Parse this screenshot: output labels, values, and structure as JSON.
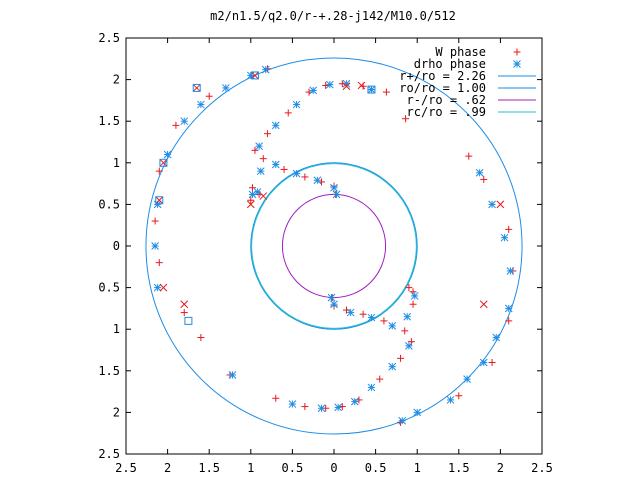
{
  "chart_data": {
    "type": "scatter",
    "title": "m2/n1.5/q2.0/r-+.28-j142/M10.0/512",
    "xlim": [
      -2.5,
      2.5
    ],
    "ylim": [
      -2.5,
      2.5
    ],
    "grid": false,
    "legend_position": "top-right",
    "x_ticks": [
      -2.5,
      -2,
      -1.5,
      -1,
      -0.5,
      0,
      0.5,
      1,
      1.5,
      2,
      2.5
    ],
    "x_tick_labels": [
      "2.5",
      "2",
      "1.5",
      "1",
      "0.5",
      "0",
      "0.5",
      "1",
      "1.5",
      "2",
      "2.5"
    ],
    "y_ticks": [
      2.5,
      2,
      1.5,
      1,
      0.5,
      0,
      -0.5,
      -1,
      -1.5,
      -2,
      -2.5
    ],
    "y_tick_labels": [
      "2.5",
      "2",
      "1.5",
      "1",
      "0.5",
      "0",
      "0.5",
      "1",
      "1.5",
      "2",
      "2.5"
    ],
    "legend": [
      {
        "label": "W phase",
        "marker": "+",
        "color": "#e8191c"
      },
      {
        "label": "drho phase",
        "marker": "*",
        "color": "#1e8ce6"
      },
      {
        "label": "r+/ro = 2.26",
        "line": true,
        "color": "#1e8ce6"
      },
      {
        "label": "ro/ro = 1.00",
        "line": true,
        "color": "#1e8ce6"
      },
      {
        "label": "r-/ro =  .62",
        "line": true,
        "color": "#a020c0"
      },
      {
        "label": "rc/ro =  .99",
        "line": true,
        "color": "#20c0d0"
      }
    ],
    "circles": [
      {
        "r": 2.26,
        "color": "#1e8ce6"
      },
      {
        "r": 1.0,
        "color": "#1e8ce6"
      },
      {
        "r": 0.62,
        "color": "#a020c0"
      },
      {
        "r": 0.99,
        "color": "#20c0d0"
      }
    ],
    "series": [
      {
        "name": "W phase",
        "marker": "+",
        "color": "#e8191c",
        "points": [
          [
            0.02,
            0.62
          ],
          [
            0.0,
            0.72
          ],
          [
            -0.15,
            0.77
          ],
          [
            -0.35,
            0.83
          ],
          [
            -0.6,
            0.92
          ],
          [
            -0.85,
            1.05
          ],
          [
            -0.98,
            0.7
          ],
          [
            -1.0,
            0.55
          ],
          [
            -0.9,
            0.62
          ],
          [
            -0.95,
            1.15
          ],
          [
            -0.8,
            1.35
          ],
          [
            -0.55,
            1.6
          ],
          [
            -0.3,
            1.85
          ],
          [
            -0.1,
            1.93
          ],
          [
            0.1,
            1.95
          ],
          [
            0.35,
            1.92
          ],
          [
            0.63,
            1.85
          ],
          [
            -0.02,
            -0.62
          ],
          [
            0.0,
            -0.72
          ],
          [
            0.15,
            -0.77
          ],
          [
            0.35,
            -0.82
          ],
          [
            0.6,
            -0.9
          ],
          [
            0.85,
            -1.02
          ],
          [
            0.95,
            -0.7
          ],
          [
            0.95,
            -0.55
          ],
          [
            0.9,
            -0.5
          ],
          [
            0.93,
            -1.15
          ],
          [
            0.8,
            -1.35
          ],
          [
            0.55,
            -1.6
          ],
          [
            0.3,
            -1.85
          ],
          [
            0.1,
            -1.93
          ],
          [
            -0.1,
            -1.95
          ],
          [
            -0.35,
            -1.93
          ],
          [
            -0.7,
            -1.83
          ],
          [
            -1.25,
            -1.55
          ],
          [
            -1.6,
            -1.1
          ],
          [
            -1.8,
            -0.8
          ],
          [
            -2.1,
            -0.2
          ],
          [
            -2.15,
            0.3
          ],
          [
            -2.1,
            0.9
          ],
          [
            -1.9,
            1.45
          ],
          [
            -1.5,
            1.8
          ],
          [
            -0.8,
            2.13
          ],
          [
            1.62,
            1.08
          ],
          [
            1.8,
            0.8
          ],
          [
            2.1,
            0.2
          ],
          [
            2.15,
            -0.3
          ],
          [
            2.1,
            -0.9
          ],
          [
            1.9,
            -1.4
          ],
          [
            1.5,
            -1.8
          ],
          [
            0.8,
            -2.12
          ],
          [
            0.45,
            1.88
          ],
          [
            0.86,
            1.53
          ]
        ]
      },
      {
        "name": "drho phase",
        "marker": "*",
        "color": "#1e8ce6",
        "points": [
          [
            0.03,
            0.62
          ],
          [
            0.0,
            0.7
          ],
          [
            -0.2,
            0.79
          ],
          [
            -0.45,
            0.87
          ],
          [
            -0.7,
            0.98
          ],
          [
            -0.88,
            0.9
          ],
          [
            -0.98,
            0.62
          ],
          [
            -0.92,
            0.65
          ],
          [
            -0.9,
            1.2
          ],
          [
            -0.7,
            1.45
          ],
          [
            -0.45,
            1.7
          ],
          [
            -0.25,
            1.87
          ],
          [
            -0.05,
            1.94
          ],
          [
            0.15,
            1.95
          ],
          [
            0.45,
            1.88
          ],
          [
            -0.03,
            -0.62
          ],
          [
            0.0,
            -0.7
          ],
          [
            0.2,
            -0.8
          ],
          [
            0.45,
            -0.86
          ],
          [
            0.7,
            -0.96
          ],
          [
            0.88,
            -0.85
          ],
          [
            0.97,
            -0.6
          ],
          [
            0.9,
            -1.2
          ],
          [
            0.7,
            -1.45
          ],
          [
            0.45,
            -1.7
          ],
          [
            0.25,
            -1.87
          ],
          [
            0.05,
            -1.94
          ],
          [
            -0.15,
            -1.95
          ],
          [
            -0.5,
            -1.9
          ],
          [
            -1.22,
            -1.55
          ],
          [
            -2.12,
            -0.5
          ],
          [
            -2.15,
            0.0
          ],
          [
            -2.12,
            0.5
          ],
          [
            -2.0,
            1.1
          ],
          [
            -1.8,
            1.5
          ],
          [
            -1.6,
            1.7
          ],
          [
            -1.3,
            1.9
          ],
          [
            -1.0,
            2.05
          ],
          [
            -0.82,
            2.12
          ],
          [
            1.6,
            -1.6
          ],
          [
            1.75,
            0.88
          ],
          [
            1.9,
            0.5
          ],
          [
            2.05,
            0.1
          ],
          [
            2.12,
            -0.3
          ],
          [
            2.1,
            -0.75
          ],
          [
            1.95,
            -1.1
          ],
          [
            1.8,
            -1.4
          ],
          [
            1.4,
            -1.85
          ],
          [
            1.0,
            -2.0
          ],
          [
            0.82,
            -2.1
          ]
        ]
      },
      {
        "name": "",
        "marker": "x",
        "color": "#e8191c",
        "points": [
          [
            -1.0,
            0.5
          ],
          [
            -0.85,
            0.6
          ],
          [
            0.15,
            1.92
          ],
          [
            -1.65,
            1.9
          ],
          [
            -2.05,
            -0.5
          ],
          [
            -1.8,
            -0.7
          ],
          [
            2.0,
            0.5
          ],
          [
            1.8,
            -0.7
          ],
          [
            -0.95,
            2.05
          ],
          [
            0.33,
            1.93
          ],
          [
            -2.1,
            0.55
          ],
          [
            -2.05,
            1.0
          ]
        ]
      },
      {
        "name": "",
        "marker": "square",
        "color": "#1e8ce6",
        "points": [
          [
            0.45,
            1.88
          ],
          [
            -1.75,
            -0.9
          ],
          [
            -0.95,
            2.05
          ],
          [
            -2.1,
            0.55
          ],
          [
            -2.05,
            1.0
          ],
          [
            -1.65,
            1.9
          ]
        ]
      }
    ]
  }
}
